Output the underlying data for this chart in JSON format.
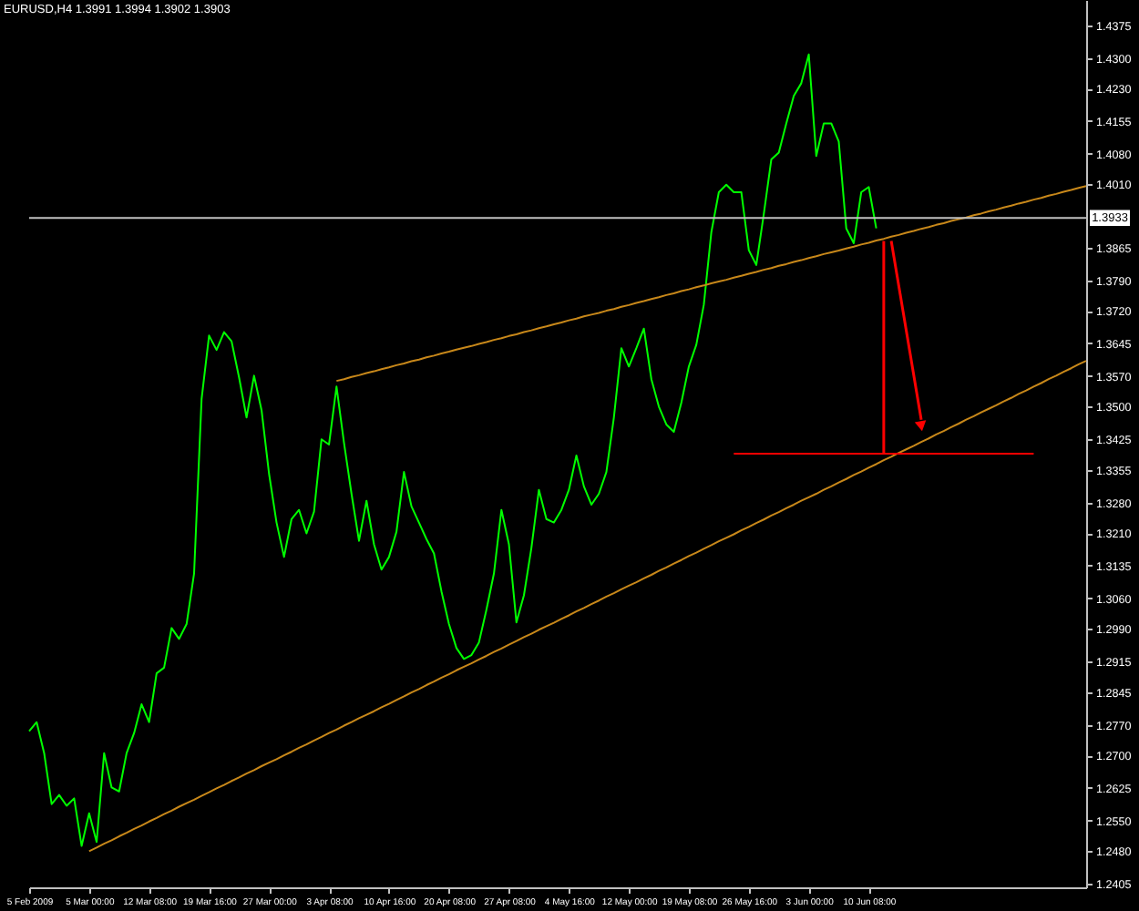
{
  "chart_data": {
    "type": "line",
    "title": "EURUSD,H4  1.3991 1.3994 1.3902 1.3903",
    "categories": [
      "5 Feb 2009",
      null,
      null,
      null,
      null,
      null,
      null,
      null,
      "5 Mar 00:00",
      null,
      null,
      null,
      null,
      null,
      null,
      null,
      "12 Mar 08:00",
      null,
      null,
      null,
      null,
      null,
      null,
      null,
      "19 Mar 16:00",
      null,
      null,
      null,
      null,
      null,
      null,
      null,
      "27 Mar 00:00",
      null,
      null,
      null,
      null,
      null,
      null,
      null,
      "3 Apr 08:00",
      null,
      null,
      null,
      null,
      null,
      null,
      null,
      "10 Apr 16:00",
      null,
      null,
      null,
      null,
      null,
      null,
      null,
      "20 Apr 08:00",
      null,
      null,
      null,
      null,
      null,
      null,
      null,
      "27 Apr 08:00",
      null,
      null,
      null,
      null,
      null,
      null,
      null,
      "4 May 16:00",
      null,
      null,
      null,
      null,
      null,
      null,
      null,
      "12 May 00:00",
      null,
      null,
      null,
      null,
      null,
      null,
      null,
      "19 May 08:00",
      null,
      null,
      null,
      null,
      null,
      null,
      null,
      "26 May 16:00",
      null,
      null,
      null,
      null,
      null,
      null,
      null,
      "3 Jun 00:00",
      null,
      null,
      null,
      null,
      null,
      null,
      null,
      "10 Jun 08:00",
      null,
      null,
      null,
      null,
      null,
      null,
      null,
      null,
      null,
      null,
      null,
      null,
      null,
      null,
      null,
      null,
      null,
      null,
      null,
      null,
      null,
      null,
      null,
      null,
      null,
      null,
      null,
      null,
      null
    ],
    "series": [
      {
        "type": "line",
        "color": "#00ff00",
        "values": [
          1.2755,
          1.2776,
          1.2705,
          1.2588,
          1.2609,
          1.2584,
          1.2601,
          1.2492,
          1.2567,
          1.2501,
          1.2705,
          1.2626,
          1.2617,
          1.2705,
          1.2751,
          1.2817,
          1.2776,
          1.2888,
          1.2901,
          1.2992,
          1.2967,
          1.3001,
          1.3117,
          1.3517,
          1.3663,
          1.363,
          1.3671,
          1.365,
          1.3567,
          1.3475,
          1.3571,
          1.3492,
          1.3346,
          1.3234,
          1.3155,
          1.3242,
          1.3263,
          1.3209,
          1.3259,
          1.3425,
          1.3413,
          1.3546,
          1.3417,
          1.33,
          1.3192,
          1.3284,
          1.3184,
          1.3126,
          1.3155,
          1.3213,
          1.335,
          1.3271,
          1.3234,
          1.3196,
          1.3163,
          1.3076,
          1.3001,
          1.2946,
          1.2921,
          1.293,
          1.2959,
          1.3034,
          1.3117,
          1.3263,
          1.3184,
          1.3005,
          1.3067,
          1.3176,
          1.3309,
          1.3242,
          1.3234,
          1.3263,
          1.3309,
          1.3388,
          1.3317,
          1.3275,
          1.33,
          1.335,
          1.3475,
          1.3634,
          1.3592,
          1.3634,
          1.3679,
          1.3563,
          1.35,
          1.3459,
          1.3442,
          1.3509,
          1.3592,
          1.3642,
          1.3734,
          1.39,
          1.3992,
          1.4009,
          1.3992,
          1.3992,
          1.3859,
          1.3825,
          1.3942,
          1.4067,
          1.4083,
          1.415,
          1.4213,
          1.4242,
          1.4308,
          1.4075,
          1.415,
          1.415,
          1.4108,
          1.3909,
          1.3875,
          1.3992,
          1.4004,
          1.3909,
          null,
          null,
          null,
          null,
          null,
          null,
          null,
          null,
          null,
          null,
          null,
          null,
          null,
          null,
          null,
          null,
          null,
          null,
          null,
          null,
          null,
          null,
          null,
          null,
          null,
          null,
          null,
          null
        ]
      },
      {
        "type": "line",
        "color": "#c8881a",
        "values": [
          null,
          null,
          null,
          null,
          null,
          null,
          null,
          null,
          null,
          null,
          null,
          null,
          null,
          null,
          null,
          null,
          null,
          null,
          null,
          null,
          null,
          null,
          null,
          null,
          null,
          null,
          null,
          null,
          null,
          null,
          null,
          null,
          null,
          null,
          null,
          null,
          null,
          null,
          null,
          null,
          null,
          1.3559,
          1.3563,
          1.3568,
          1.3572,
          1.3577,
          1.3581,
          1.3586,
          1.359,
          1.3595,
          1.3599,
          1.3604,
          1.3608,
          1.3613,
          1.3617,
          1.3622,
          1.3626,
          1.3631,
          1.3635,
          1.3639,
          1.3644,
          1.3648,
          1.3653,
          1.3657,
          1.3662,
          1.3666,
          1.3671,
          1.3675,
          1.368,
          1.3684,
          1.3689,
          1.3693,
          1.3698,
          1.3702,
          1.3707,
          1.3711,
          1.3715,
          1.372,
          1.3724,
          1.3729,
          1.3733,
          1.3738,
          1.3742,
          1.3747,
          1.3751,
          1.3756,
          1.376,
          1.3765,
          1.3769,
          1.3774,
          1.3778,
          1.3783,
          1.3787,
          1.3791,
          1.3796,
          1.38,
          1.3805,
          1.3809,
          1.3814,
          1.3818,
          1.3823,
          1.3827,
          1.3832,
          1.3836,
          1.3841,
          1.3845,
          1.385,
          1.3854,
          1.3858,
          1.3863,
          1.3867,
          1.3872,
          1.3876,
          1.3881,
          1.3885,
          1.389,
          1.3894,
          1.3899,
          1.3903,
          1.3908,
          1.3912,
          1.3917,
          1.3921,
          1.3926,
          1.393,
          1.3934,
          1.3939,
          1.3943,
          1.3948,
          1.3952,
          1.3957,
          1.3961,
          1.3966,
          1.397,
          1.3975,
          1.3979,
          1.3984,
          1.3988,
          1.3993,
          1.3997,
          1.4002,
          1.4006
        ]
      },
      {
        "type": "line",
        "color": "#c8881a",
        "values": [
          null,
          null,
          null,
          null,
          null,
          null,
          null,
          null,
          1.248,
          1.2488,
          1.2497,
          1.2505,
          1.2514,
          1.2522,
          1.2531,
          1.2539,
          1.2548,
          1.2556,
          1.2565,
          1.2573,
          1.2582,
          1.259,
          1.2598,
          1.2607,
          1.2615,
          1.2624,
          1.2632,
          1.2641,
          1.2649,
          1.2658,
          1.2666,
          1.2675,
          1.2683,
          1.2691,
          1.27,
          1.2708,
          1.2717,
          1.2725,
          1.2734,
          1.2742,
          1.2751,
          1.2759,
          1.2768,
          1.2776,
          1.2785,
          1.2793,
          1.2801,
          1.281,
          1.2818,
          1.2827,
          1.2835,
          1.2844,
          1.2852,
          1.2861,
          1.2869,
          1.2878,
          1.2886,
          1.2895,
          1.2903,
          1.2911,
          1.292,
          1.2928,
          1.2937,
          1.2945,
          1.2954,
          1.2962,
          1.2971,
          1.2979,
          1.2988,
          1.2996,
          1.3004,
          1.3013,
          1.3021,
          1.303,
          1.3038,
          1.3047,
          1.3055,
          1.3064,
          1.3072,
          1.3081,
          1.3089,
          1.3097,
          1.3106,
          1.3114,
          1.3123,
          1.3131,
          1.314,
          1.3148,
          1.3157,
          1.3165,
          1.3174,
          1.3182,
          1.3191,
          1.3199,
          1.3207,
          1.3216,
          1.3224,
          1.3233,
          1.3241,
          1.325,
          1.3258,
          1.3267,
          1.3275,
          1.3284,
          1.3292,
          1.33,
          1.3309,
          1.3317,
          1.3326,
          1.3334,
          1.3343,
          1.3351,
          1.336,
          1.3368,
          1.3377,
          1.3385,
          1.3394,
          1.3402,
          1.341,
          1.3419,
          1.3427,
          1.3436,
          1.3444,
          1.3453,
          1.3461,
          1.347,
          1.3478,
          1.3487,
          1.3495,
          1.3503,
          1.3512,
          1.352,
          1.3529,
          1.3537,
          1.3546,
          1.3554,
          1.3563,
          1.3571,
          1.358,
          1.3588,
          1.3597,
          1.3605
        ]
      },
      {
        "type": "line",
        "color": "#ff0000",
        "values": [
          null,
          null,
          null,
          null,
          null,
          null,
          null,
          null,
          null,
          null,
          null,
          null,
          null,
          null,
          null,
          null,
          null,
          null,
          null,
          null,
          null,
          null,
          null,
          null,
          null,
          null,
          null,
          null,
          null,
          null,
          null,
          null,
          null,
          null,
          null,
          null,
          null,
          null,
          null,
          null,
          null,
          null,
          null,
          null,
          null,
          null,
          null,
          null,
          null,
          null,
          null,
          null,
          null,
          null,
          null,
          null,
          null,
          null,
          null,
          null,
          null,
          null,
          null,
          null,
          null,
          null,
          null,
          null,
          null,
          null,
          null,
          null,
          null,
          null,
          null,
          null,
          null,
          null,
          null,
          null,
          null,
          null,
          null,
          null,
          null,
          null,
          null,
          null,
          null,
          null,
          null,
          null,
          null,
          null,
          1.3392,
          1.3392,
          1.3392,
          1.3392,
          1.3392,
          1.3392,
          1.3392,
          1.3392,
          1.3392,
          1.3392,
          1.3392,
          1.3392,
          1.3392,
          1.3392,
          1.3392,
          1.3392,
          1.3392,
          1.3392,
          1.3392,
          1.3392,
          1.3392,
          1.3392,
          1.3392,
          1.3392,
          1.3392,
          1.3392,
          1.3392,
          1.3392,
          1.3392,
          1.3392,
          1.3392,
          1.3392,
          1.3392,
          1.3392,
          1.3392,
          1.3392,
          1.3392,
          1.3392,
          1.3392,
          1.3392,
          1.3392,
          null,
          null,
          null,
          null,
          null,
          null,
          null
        ]
      }
    ],
    "ylim": [
      1.2397,
      1.4433
    ],
    "yticks": [
      1.2405,
      {
        "value": 1.248,
        "label": "1.2480"
      },
      {
        "value": 1.255,
        "label": "1.2550"
      },
      1.2625,
      {
        "value": 1.27,
        "label": "1.2700"
      },
      {
        "value": 1.277,
        "label": "1.2770"
      },
      1.2845,
      1.2915,
      {
        "value": 1.299,
        "label": "1.2990"
      },
      {
        "value": 1.306,
        "label": "1.3060"
      },
      1.3135,
      {
        "value": 1.321,
        "label": "1.3210"
      },
      {
        "value": 1.328,
        "label": "1.3280"
      },
      1.3355,
      1.3425,
      {
        "value": 1.35,
        "label": "1.3500"
      },
      {
        "value": 1.357,
        "label": "1.3570"
      },
      1.3645,
      {
        "value": 1.372,
        "label": "1.3720"
      },
      {
        "value": 1.379,
        "label": "1.3790"
      },
      1.3865,
      {
        "value": 1.401,
        "label": "1.4010"
      },
      {
        "value": 1.408,
        "label": "1.4080"
      },
      1.4155,
      {
        "value": 1.423,
        "label": "1.4230"
      },
      {
        "value": 1.43,
        "label": "1.4300"
      },
      1.4375
    ],
    "ref_lines": [
      {
        "axis": "y",
        "value": 1.3933,
        "label": "1.3933",
        "color": "#c0c0c0"
      }
    ],
    "grid": false,
    "legend": false,
    "line_style": "solid",
    "marker": "none"
  }
}
